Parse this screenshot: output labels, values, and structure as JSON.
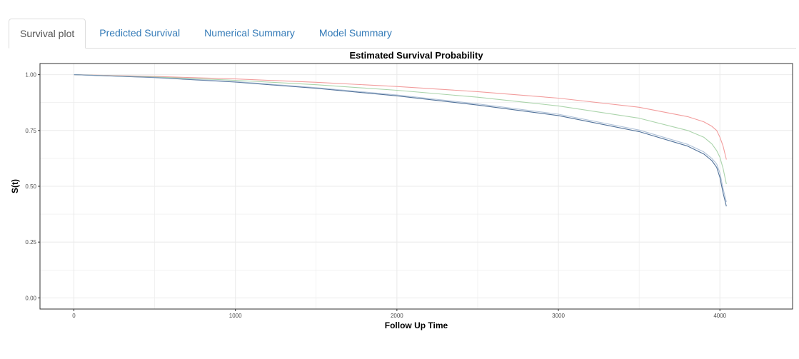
{
  "tabs": [
    {
      "label": "Survival plot",
      "active": true
    },
    {
      "label": "Predicted Survival",
      "active": false
    },
    {
      "label": "Numerical Summary",
      "active": false
    },
    {
      "label": "Model Summary",
      "active": false
    }
  ],
  "colors": {
    "tab_link": "#337ab7",
    "tab_active_text": "#555555",
    "grid": "#ebebeb",
    "panel_border": "#333333",
    "series_red": "#f08c8c",
    "series_green": "#9ccc9c",
    "series_blue": "#4a6f9a"
  },
  "chart_data": {
    "type": "line",
    "title": "Estimated Survival Probability",
    "xlabel": "Follow Up Time",
    "ylabel": "S(t)",
    "xlim": [
      -210,
      4450
    ],
    "ylim": [
      -0.05,
      1.05
    ],
    "xticks": [
      0,
      1000,
      2000,
      3000,
      4000
    ],
    "xtick_labels": [
      "0",
      "1000",
      "2000",
      "3000",
      "4000"
    ],
    "yticks": [
      0.0,
      0.25,
      0.5,
      0.75,
      1.0
    ],
    "ytick_labels": [
      "0.00",
      "0.25",
      "0.50",
      "0.75",
      "1.00"
    ],
    "grid": true,
    "legend": "none",
    "series": [
      {
        "color": "#f08c8c",
        "opacity": 0.85,
        "x": [
          0,
          500,
          1000,
          1500,
          2000,
          2500,
          3000,
          3500,
          3800,
          3900,
          3950,
          3980,
          4000,
          4020,
          4040
        ],
        "y": [
          1.0,
          0.992,
          0.981,
          0.966,
          0.947,
          0.924,
          0.895,
          0.854,
          0.812,
          0.789,
          0.769,
          0.75,
          0.72,
          0.68,
          0.62
        ]
      },
      {
        "color": "#9ccc9c",
        "opacity": 0.85,
        "x": [
          0,
          500,
          1000,
          1500,
          2000,
          2500,
          3000,
          3500,
          3800,
          3900,
          3950,
          3980,
          4000,
          4020,
          4040
        ],
        "y": [
          1.0,
          0.99,
          0.975,
          0.955,
          0.93,
          0.899,
          0.86,
          0.805,
          0.75,
          0.72,
          0.69,
          0.66,
          0.63,
          0.58,
          0.51
        ]
      },
      {
        "color": "#3d628e",
        "opacity": 0.9,
        "x": [
          0,
          500,
          1000,
          1500,
          2000,
          2500,
          3000,
          3500,
          3800,
          3900,
          3950,
          3980,
          4000,
          4020,
          4040
        ],
        "y": [
          1.0,
          0.987,
          0.967,
          0.939,
          0.905,
          0.864,
          0.817,
          0.745,
          0.68,
          0.645,
          0.615,
          0.585,
          0.54,
          0.47,
          0.41
        ]
      },
      {
        "color": "#8fa8c8",
        "opacity": 0.7,
        "x": [
          0,
          500,
          1000,
          1500,
          2000,
          2500,
          3000,
          3500,
          3800,
          3900,
          3950,
          3980,
          4000,
          4020,
          4040
        ],
        "y": [
          1.0,
          0.988,
          0.969,
          0.942,
          0.909,
          0.869,
          0.823,
          0.752,
          0.688,
          0.654,
          0.625,
          0.6,
          0.56,
          0.49,
          0.43
        ]
      }
    ]
  }
}
